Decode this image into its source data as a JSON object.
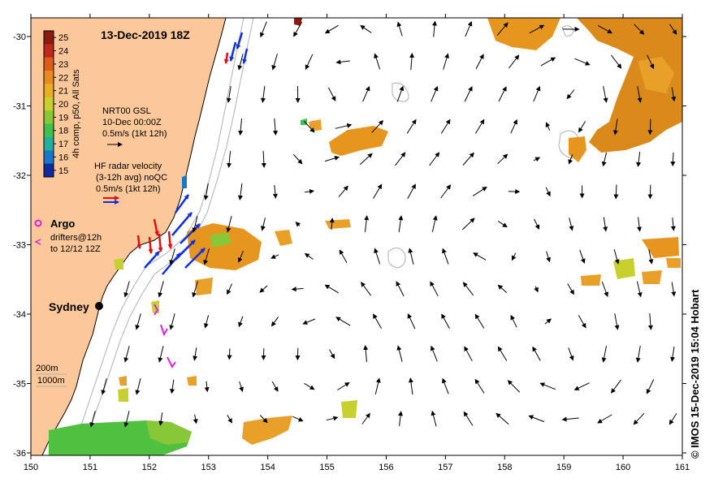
{
  "map": {
    "title": "13-Dec-2019 18Z",
    "lon_ticks": [
      "150",
      "151",
      "152",
      "153",
      "154",
      "155",
      "156",
      "157",
      "158",
      "159",
      "160",
      "161"
    ],
    "lat_ticks": [
      "-30",
      "-31",
      "-32",
      "-33",
      "-34",
      "-35",
      "-36"
    ],
    "colorbar": {
      "label": "4h comp, p50, All Sats",
      "ticks": [
        "25",
        "24",
        "23",
        "22",
        "21",
        "20",
        "19",
        "18",
        "17",
        "16",
        "15"
      ],
      "colors": [
        "#8b1a10",
        "#c0281c",
        "#e05a1c",
        "#e88a20",
        "#e8b020",
        "#c8d030",
        "#88c838",
        "#40c050",
        "#20b0a0",
        "#1878c8",
        "#1028a0"
      ]
    },
    "legend": {
      "gsl": [
        "NRT00 GSL",
        "10-Dec 00:00Z",
        "0.5m/s (1kt 12h)"
      ],
      "hf": [
        "HF radar velocity",
        "(3-12h avg) noQC",
        "0.5m/s (1kt 12h)"
      ],
      "argo_label": "Argo",
      "drifters": [
        "drifters@12h",
        "to 12/12 12Z"
      ],
      "bathy": [
        "200m",
        "1000m"
      ]
    },
    "city": "Sydney",
    "credit": "© IMOS 15-Dec-2019 15:04 Hobart",
    "colors": {
      "land": "#fcc89a",
      "sea": "#ffffff",
      "sst_warm": "#e6961e",
      "sst_green": "#50c040",
      "hf_radar_a": "#e01010",
      "hf_radar_b": "#1030e0",
      "argo": "#e020e0",
      "bathy_line": "#b0b0b0"
    }
  }
}
